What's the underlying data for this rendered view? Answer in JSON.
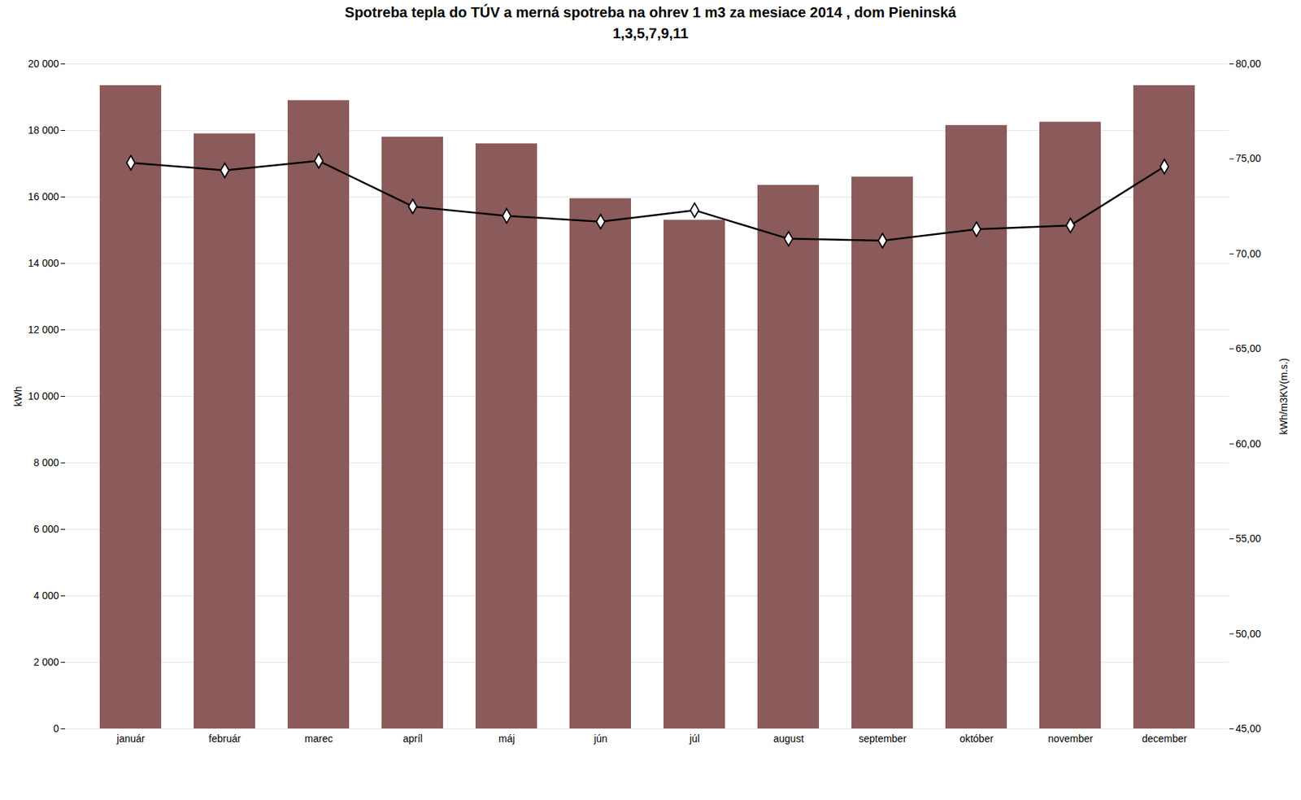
{
  "chart_data": {
    "type": "bar",
    "title": "Spotreba tepla do TÚV a merná spotreba na ohrev 1 m3 za mesiace 2014 , dom Pieninská",
    "subtitle": "1,3,5,7,9,11",
    "categories": [
      "január",
      "február",
      "marec",
      "apríl",
      "máj",
      "jún",
      "júl",
      "august",
      "september",
      "október",
      "november",
      "december"
    ],
    "series": [
      {
        "type": "bar",
        "color": "#8B5A5A",
        "values": [
          19350,
          17900,
          18900,
          17800,
          17600,
          15950,
          15300,
          16350,
          16600,
          18150,
          18250,
          19350
        ]
      },
      {
        "type": "line",
        "axis": "y2",
        "color": "#000000",
        "marker": "diamond",
        "values": [
          74.8,
          74.4,
          74.9,
          72.5,
          72.0,
          71.7,
          72.3,
          70.8,
          70.7,
          71.3,
          71.5,
          74.6
        ]
      }
    ],
    "ylabel": "kWh",
    "y2label": "kWh/m3KV(m.s.)",
    "ylim": [
      0,
      20000
    ],
    "yticks": [
      0,
      {
        "value": 2000,
        "label": "2 000"
      },
      {
        "value": 4000,
        "label": "4 000"
      },
      {
        "value": 6000,
        "label": "6 000"
      },
      {
        "value": 8000,
        "label": "8 000"
      },
      {
        "value": 10000,
        "label": "10 000"
      },
      {
        "value": 12000,
        "label": "12 000"
      },
      {
        "value": 14000,
        "label": "14 000"
      },
      {
        "value": 16000,
        "label": "16 000"
      },
      {
        "value": 18000,
        "label": "18 000"
      },
      {
        "value": 20000,
        "label": "20 000"
      }
    ],
    "y2lim": [
      45.0,
      80.0
    ],
    "y2ticks": [
      {
        "value": 45.0,
        "label": "45,00"
      },
      {
        "value": 50.0,
        "label": "50,00"
      },
      {
        "value": 55.0,
        "label": "55,00"
      },
      {
        "value": 60.0,
        "label": "60,00"
      },
      {
        "value": 65.0,
        "label": "65,00"
      },
      {
        "value": 70.0,
        "label": "70,00"
      },
      {
        "value": 75.0,
        "label": "75,00"
      },
      {
        "value": 80.0,
        "label": "80,00"
      }
    ],
    "grid": true
  }
}
